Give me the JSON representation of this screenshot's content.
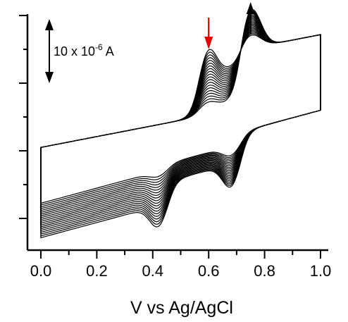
{
  "chart_data": {
    "type": "line",
    "title": "",
    "xlabel": "V vs Ag/AgCl",
    "ylabel": "",
    "xlim": [
      0.0,
      1.0
    ],
    "x_ticks": [
      "0.0",
      "0.2",
      "0.4",
      "0.6",
      "0.8",
      "1.0"
    ],
    "y_axis_labels_shown": false,
    "grid": false,
    "scale_bar": {
      "text_main": "10 x 10",
      "text_exp": "-6",
      "text_unit": " A",
      "value_A": 1e-05
    },
    "markers": [
      {
        "name": "decreasing-peak-arrow",
        "x": 0.6,
        "direction": "down",
        "color": "#e60000"
      },
      {
        "name": "increasing-peak-arrow",
        "x": 0.75,
        "direction": "up",
        "color": "#000000"
      }
    ],
    "series_count": 20,
    "series_style": {
      "color": "#000000"
    },
    "peaks": {
      "anodic_1": {
        "x": 0.6,
        "y_first": 11.5,
        "y_last": 3.5
      },
      "anodic_2": {
        "x": 0.75,
        "y_first": 6.0,
        "y_last": 15.0
      },
      "cathodic_1": {
        "x": 0.68,
        "y_first": -6.2,
        "y_last": -11.0
      },
      "cathodic_2": {
        "x": 0.42,
        "y_first": -3.6,
        "y_last": -8.5
      }
    },
    "baseline": {
      "upper_start": 0.5,
      "lower_start": -4.0,
      "upper_end": 8.5,
      "lower_end": 7.2
    }
  }
}
